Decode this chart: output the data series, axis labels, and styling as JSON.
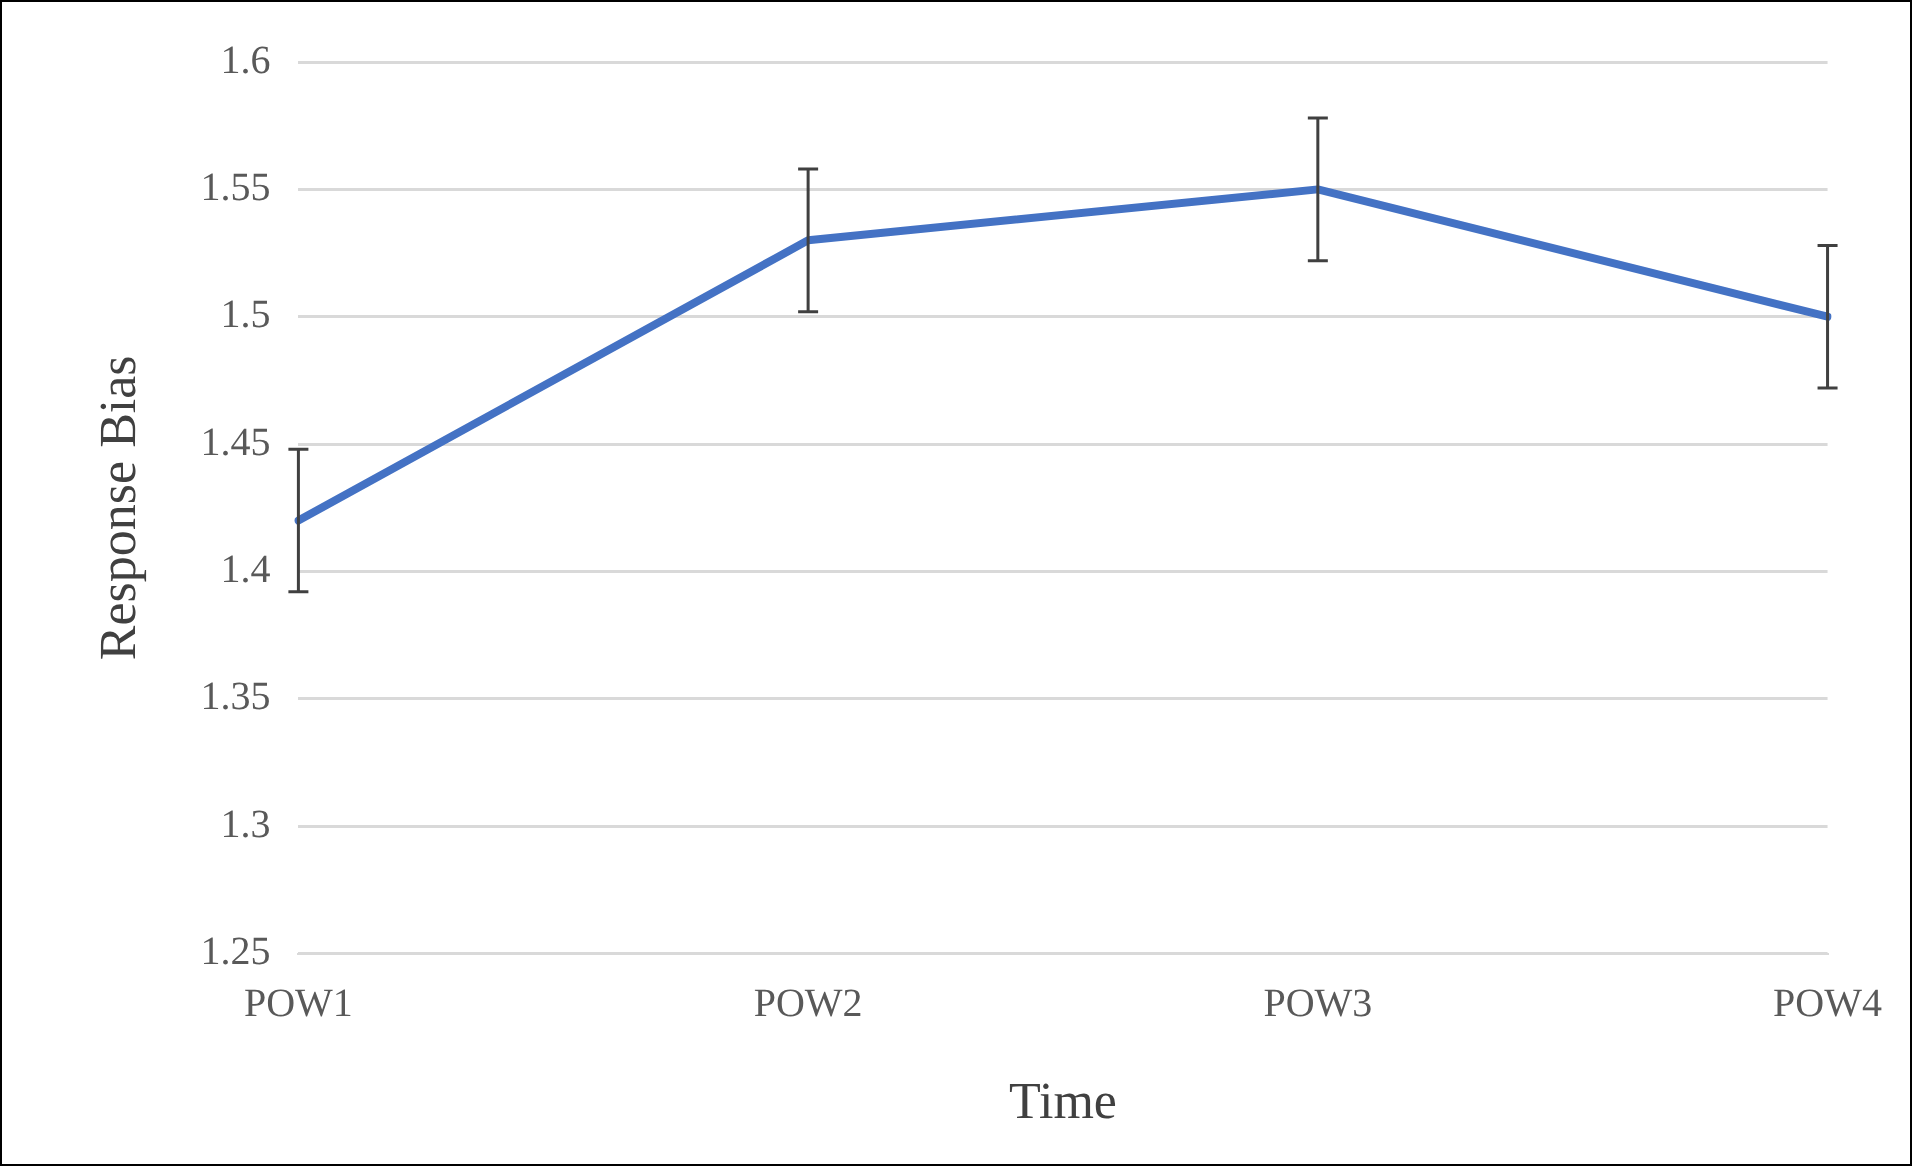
{
  "chart_data": {
    "type": "line",
    "xlabel": "Time",
    "ylabel": "Response Bias",
    "categories": [
      "POW1",
      "POW2",
      "POW3",
      "POW4"
    ],
    "series": [
      {
        "color": "#4472c4",
        "values": [
          1.42,
          1.53,
          1.55,
          1.5
        ],
        "errors": [
          0.028,
          0.028,
          0.028,
          0.028
        ]
      }
    ],
    "ylim": [
      1.25,
      1.6
    ],
    "yticks": [
      1.25,
      1.3,
      1.35,
      1.4,
      1.45,
      1.5,
      1.55,
      1.6
    ],
    "grid": "y",
    "legend": false,
    "marker": "none",
    "line_style": "solid"
  }
}
